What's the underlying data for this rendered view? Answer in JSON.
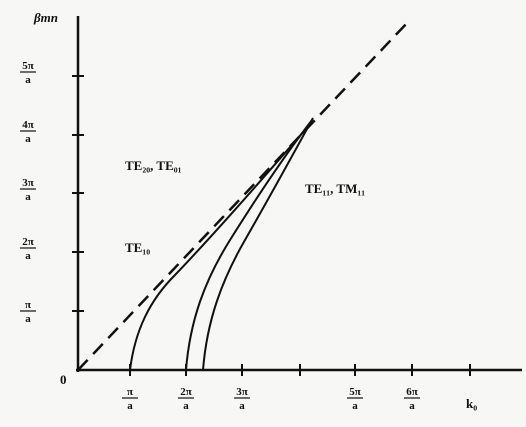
{
  "y_axis_label": "βmn",
  "origin_label": "0",
  "x_axis_label": "k₀",
  "y_ticks": [
    {
      "num": "π",
      "den": "a"
    },
    {
      "num": "2π",
      "den": "a"
    },
    {
      "num": "3π",
      "den": "a"
    },
    {
      "num": "4π",
      "den": "a"
    },
    {
      "num": "5π",
      "den": "a"
    }
  ],
  "x_ticks": [
    {
      "num": "π",
      "den": "a"
    },
    {
      "num": "2π",
      "den": "a"
    },
    {
      "num": "3π",
      "den": "a"
    },
    {
      "num": "5π",
      "den": "a"
    },
    {
      "num": "6π",
      "den": "a"
    }
  ],
  "curve_labels": [
    "TE₂₀, TE₀₁",
    "TE₁₀",
    "TE₁₁, TM₁₁"
  ]
}
